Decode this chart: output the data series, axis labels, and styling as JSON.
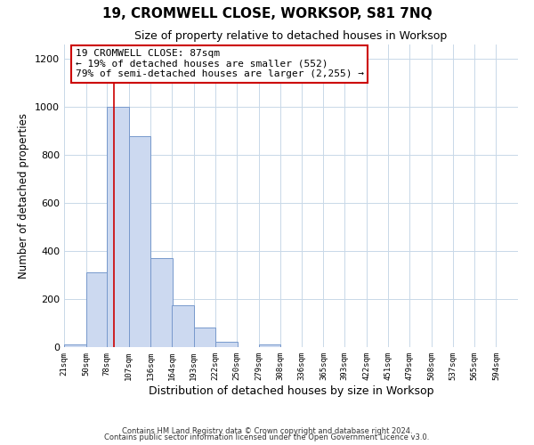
{
  "title": "19, CROMWELL CLOSE, WORKSOP, S81 7NQ",
  "subtitle": "Size of property relative to detached houses in Worksop",
  "xlabel": "Distribution of detached houses by size in Worksop",
  "ylabel": "Number of detached properties",
  "bar_values": [
    10,
    310,
    1000,
    880,
    370,
    175,
    80,
    22,
    0,
    10,
    0,
    0,
    0,
    0,
    0,
    0,
    0,
    0
  ],
  "bin_edges": [
    21,
    50,
    78,
    107,
    136,
    164,
    193,
    222,
    250,
    279,
    308,
    336,
    365,
    393,
    422,
    451,
    479,
    508,
    537
  ],
  "bin_width": 29,
  "tick_labels": [
    "21sqm",
    "50sqm",
    "78sqm",
    "107sqm",
    "136sqm",
    "164sqm",
    "193sqm",
    "222sqm",
    "250sqm",
    "279sqm",
    "308sqm",
    "336sqm",
    "365sqm",
    "393sqm",
    "422sqm",
    "451sqm",
    "479sqm",
    "508sqm",
    "537sqm",
    "565sqm",
    "594sqm"
  ],
  "tick_positions": [
    21,
    50,
    78,
    107,
    136,
    164,
    193,
    222,
    250,
    279,
    308,
    336,
    365,
    393,
    422,
    451,
    479,
    508,
    537,
    565,
    594
  ],
  "bar_color": "#ccd9f0",
  "bar_edge_color": "#7799cc",
  "vline_x": 87,
  "vline_color": "#cc0000",
  "xlim_min": 21,
  "xlim_max": 623,
  "ylim": [
    0,
    1260
  ],
  "yticks": [
    0,
    200,
    400,
    600,
    800,
    1000,
    1200
  ],
  "annotation_title": "19 CROMWELL CLOSE: 87sqm",
  "annotation_line1": "← 19% of detached houses are smaller (552)",
  "annotation_line2": "79% of semi-detached houses are larger (2,255) →",
  "annotation_box_color": "#ffffff",
  "annotation_box_edge": "#cc0000",
  "footer1": "Contains HM Land Registry data © Crown copyright and database right 2024.",
  "footer2": "Contains public sector information licensed under the Open Government Licence v3.0.",
  "background_color": "#ffffff",
  "grid_color": "#c8d8e8"
}
